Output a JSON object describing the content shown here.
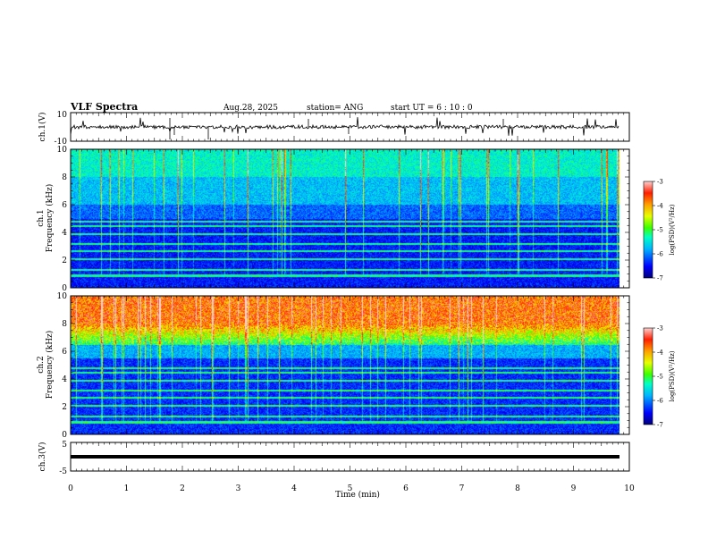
{
  "chart_data": {
    "type": "spectrogram",
    "title": "VLF Spectra",
    "date": "Aug.28, 2025",
    "station": "station= ANG",
    "start_ut": "start  UT =   6  : 10 : 0",
    "xlabel": "Time  (min)",
    "xlim": [
      0,
      10
    ],
    "x_ticks": [
      "0",
      "1",
      "2",
      "3",
      "4",
      "5",
      "6",
      "7",
      "8",
      "9",
      "10"
    ],
    "waveform1": {
      "ylabel": "ch.1(V)",
      "ylim": [
        -10,
        10
      ],
      "y_ticks": [
        "10",
        "-10"
      ]
    },
    "spectrogram1": {
      "ylabel_top": "ch.1",
      "ylabel": "Frequency  (kHz)",
      "ylim": [
        0,
        10
      ],
      "y_ticks": [
        "10",
        "8",
        "6",
        "4",
        "2",
        "0"
      ],
      "colorbar_label": "log(PSD)(V²/Hz)",
      "colorbar_ticks": [
        "-3",
        "-4",
        "-5",
        "-6",
        "-7"
      ],
      "colorbar_range": [
        -7,
        -3
      ]
    },
    "spectrogram2": {
      "ylabel_top": "ch.2",
      "ylabel": "Frequency  (kHz)",
      "ylim": [
        0,
        10
      ],
      "y_ticks": [
        "10",
        "8",
        "6",
        "4",
        "2",
        "0"
      ],
      "colorbar_label": "log(PSD)(V²/Hz)",
      "colorbar_ticks": [
        "-3",
        "-4",
        "-5",
        "-6",
        "-7"
      ],
      "colorbar_range": [
        -7,
        -3
      ]
    },
    "waveform3": {
      "ylabel": "ch.3(V)",
      "ylim": [
        -5,
        5
      ],
      "y_ticks": [
        "5",
        "-5"
      ]
    },
    "data_end_min": 9.82
  }
}
